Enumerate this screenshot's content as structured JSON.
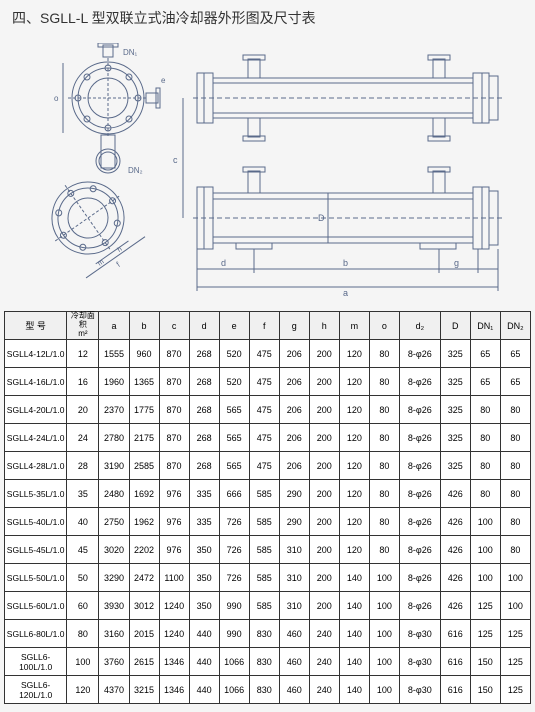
{
  "title": "四、SGLL-L 型双联立式油冷却器外形图及尺寸表",
  "table": {
    "headers": [
      "型 号",
      "冷却面积\nm²",
      "a",
      "b",
      "c",
      "d",
      "e",
      "f",
      "g",
      "h",
      "m",
      "o",
      "d₂",
      "D",
      "DN₁",
      "DN₂"
    ],
    "rows": [
      [
        "SGLL4-12L/1.0",
        "12",
        "1555",
        "960",
        "870",
        "268",
        "520",
        "475",
        "206",
        "200",
        "120",
        "80",
        "8-φ26",
        "325",
        "65",
        "65"
      ],
      [
        "SGLL4-16L/1.0",
        "16",
        "1960",
        "1365",
        "870",
        "268",
        "520",
        "475",
        "206",
        "200",
        "120",
        "80",
        "8-φ26",
        "325",
        "65",
        "65"
      ],
      [
        "SGLL4-20L/1.0",
        "20",
        "2370",
        "1775",
        "870",
        "268",
        "565",
        "475",
        "206",
        "200",
        "120",
        "80",
        "8-φ26",
        "325",
        "80",
        "80"
      ],
      [
        "SGLL4-24L/1.0",
        "24",
        "2780",
        "2175",
        "870",
        "268",
        "565",
        "475",
        "206",
        "200",
        "120",
        "80",
        "8-φ26",
        "325",
        "80",
        "80"
      ],
      [
        "SGLL4-28L/1.0",
        "28",
        "3190",
        "2585",
        "870",
        "268",
        "565",
        "475",
        "206",
        "200",
        "120",
        "80",
        "8-φ26",
        "325",
        "80",
        "80"
      ],
      [
        "SGLL5-35L/1.0",
        "35",
        "2480",
        "1692",
        "976",
        "335",
        "666",
        "585",
        "290",
        "200",
        "120",
        "80",
        "8-φ26",
        "426",
        "80",
        "80"
      ],
      [
        "SGLL5-40L/1.0",
        "40",
        "2750",
        "1962",
        "976",
        "335",
        "726",
        "585",
        "290",
        "200",
        "120",
        "80",
        "8-φ26",
        "426",
        "100",
        "80"
      ],
      [
        "SGLL5-45L/1.0",
        "45",
        "3020",
        "2202",
        "976",
        "350",
        "726",
        "585",
        "310",
        "200",
        "120",
        "80",
        "8-φ26",
        "426",
        "100",
        "80"
      ],
      [
        "SGLL5-50L/1.0",
        "50",
        "3290",
        "2472",
        "1100",
        "350",
        "726",
        "585",
        "310",
        "200",
        "140",
        "100",
        "8-φ26",
        "426",
        "100",
        "100"
      ],
      [
        "SGLL5-60L/1.0",
        "60",
        "3930",
        "3012",
        "1240",
        "350",
        "990",
        "585",
        "310",
        "200",
        "140",
        "100",
        "8-φ26",
        "426",
        "125",
        "100"
      ],
      [
        "SGLL6-80L/1.0",
        "80",
        "3160",
        "2015",
        "1240",
        "440",
        "990",
        "830",
        "460",
        "240",
        "140",
        "100",
        "8-φ30",
        "616",
        "125",
        "125"
      ],
      [
        "SGLL6-100L/1.0",
        "100",
        "3760",
        "2615",
        "1346",
        "440",
        "1066",
        "830",
        "460",
        "240",
        "140",
        "100",
        "8-φ30",
        "616",
        "150",
        "125"
      ],
      [
        "SGLL6-120L/1.0",
        "120",
        "4370",
        "3215",
        "1346",
        "440",
        "1066",
        "830",
        "460",
        "240",
        "140",
        "100",
        "8-φ30",
        "616",
        "150",
        "125"
      ]
    ],
    "col_classes": [
      "col-model",
      "col-area",
      "col-std",
      "col-std",
      "col-std",
      "col-std",
      "col-std",
      "col-std",
      "col-std",
      "col-std",
      "col-std",
      "col-std",
      "col-d2",
      "col-std",
      "col-std",
      "col-std"
    ]
  },
  "diagram": {
    "stroke": "#5a6a8a",
    "stroke_width": 1,
    "labels": {
      "a": "a",
      "b": "b",
      "c": "c",
      "d": "d",
      "e": "e",
      "f": "f",
      "g": "g",
      "h": "h",
      "m": "m",
      "o": "o",
      "D": "D",
      "DN1": "DN₁",
      "DN2": "DN₂"
    }
  }
}
